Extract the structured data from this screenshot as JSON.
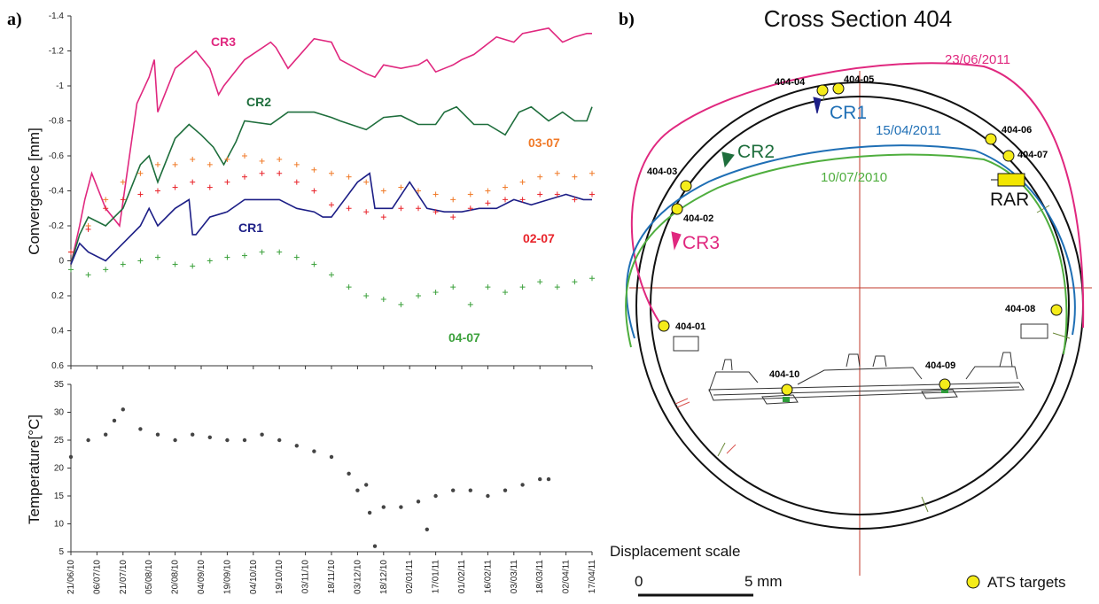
{
  "panel_a": {
    "letter": "a)",
    "convergence": {
      "ylabel": "Convergence [mm]",
      "ylim": [
        0.6,
        -1.4
      ],
      "yticks": [
        -1.4,
        -1.2,
        -1,
        -0.8,
        -0.6,
        -0.4,
        -0.2,
        0,
        0.2,
        0.4,
        0.6
      ],
      "ytick_labels": [
        "-1.4",
        "-1.2",
        "-1",
        "-0.8",
        "-0.6",
        "-0.4",
        "-0.2",
        "0",
        "0.2",
        "0.4",
        "0.6"
      ]
    },
    "temperature": {
      "ylabel": "Temperature[°C]",
      "ylim": [
        5,
        35
      ],
      "yticks": [
        5,
        10,
        15,
        20,
        25,
        30,
        35
      ],
      "ytick_labels": [
        "5",
        "10",
        "15",
        "20",
        "25",
        "30",
        "35"
      ]
    },
    "x_dates": [
      "21/06/10",
      "06/07/10",
      "21/07/10",
      "05/08/10",
      "20/08/10",
      "04/09/10",
      "19/09/10",
      "04/10/10",
      "19/10/10",
      "03/11/10",
      "18/11/10",
      "03/12/10",
      "18/12/10",
      "02/01/11",
      "17/01/11",
      "01/02/11",
      "16/02/11",
      "03/03/11",
      "18/03/11",
      "02/04/11",
      "17/04/11"
    ]
  },
  "panel_b": {
    "letter": "b)",
    "title": "Cross Section 404",
    "dates": {
      "d1": "23/06/2011",
      "d2": "15/04/2011",
      "d3": "10/07/2010"
    },
    "cr_labels": {
      "cr1": "CR1",
      "cr2": "CR2",
      "cr3": "CR3"
    },
    "rar": "RAR",
    "targets": [
      "404-01",
      "404-02",
      "404-03",
      "404-04",
      "404-05",
      "404-06",
      "404-07",
      "404-08",
      "404-09",
      "404-10"
    ],
    "scale_title": "Displacement scale",
    "scale_left": "0",
    "scale_right": "5 mm",
    "legend": "ATS targets"
  },
  "chart_data": [
    {
      "type": "line",
      "title": "",
      "xlabel": "",
      "ylabel": "Convergence [mm]",
      "x_range": [
        "21/06/10",
        "17/04/11"
      ],
      "ylim": [
        0.6,
        -1.4
      ],
      "y_axis_inverted": true,
      "grid": false,
      "series": [
        {
          "name": "CR3",
          "style": "line",
          "color": "#e0287f",
          "x": [
            0,
            5,
            8,
            12,
            20,
            28,
            38,
            45,
            48,
            50,
            60,
            72,
            80,
            85,
            88,
            92,
            100,
            115,
            118,
            125,
            140,
            150,
            155,
            170,
            175,
            180,
            190,
            200,
            205,
            210,
            220,
            225,
            232,
            245,
            255,
            260,
            275,
            283,
            290,
            297,
            300
          ],
          "y": [
            0.02,
            -0.2,
            -0.35,
            -0.5,
            -0.3,
            -0.2,
            -0.9,
            -1.05,
            -1.15,
            -0.85,
            -1.1,
            -1.2,
            -1.1,
            -0.95,
            -1.0,
            -1.05,
            -1.15,
            -1.25,
            -1.22,
            -1.1,
            -1.27,
            -1.25,
            -1.15,
            -1.07,
            -1.05,
            -1.12,
            -1.1,
            -1.12,
            -1.15,
            -1.08,
            -1.12,
            -1.15,
            -1.18,
            -1.28,
            -1.25,
            -1.3,
            -1.33,
            -1.25,
            -1.28,
            -1.3,
            -1.3
          ]
        },
        {
          "name": "CR2",
          "style": "line",
          "color": "#1e6e3c",
          "x": [
            0,
            5,
            10,
            20,
            30,
            40,
            45,
            50,
            60,
            68,
            75,
            82,
            88,
            95,
            100,
            115,
            125,
            140,
            150,
            155,
            170,
            180,
            190,
            200,
            210,
            215,
            222,
            232,
            240,
            250,
            258,
            265,
            275,
            283,
            290,
            297,
            300
          ],
          "y": [
            0.02,
            -0.15,
            -0.25,
            -0.2,
            -0.3,
            -0.55,
            -0.6,
            -0.45,
            -0.7,
            -0.78,
            -0.72,
            -0.65,
            -0.55,
            -0.68,
            -0.8,
            -0.78,
            -0.85,
            -0.85,
            -0.82,
            -0.8,
            -0.75,
            -0.82,
            -0.83,
            -0.78,
            -0.78,
            -0.85,
            -0.88,
            -0.78,
            -0.78,
            -0.72,
            -0.85,
            -0.88,
            -0.8,
            -0.85,
            -0.8,
            -0.8,
            -0.88
          ]
        },
        {
          "name": "CR1",
          "style": "line",
          "color": "#1c1e86",
          "x": [
            0,
            5,
            10,
            20,
            30,
            40,
            45,
            50,
            60,
            68,
            70,
            72,
            80,
            90,
            100,
            112,
            120,
            130,
            140,
            145,
            150,
            165,
            172,
            175,
            185,
            195,
            205,
            215,
            225,
            235,
            245,
            255,
            265,
            275,
            285,
            295,
            300
          ],
          "y": [
            0.02,
            -0.1,
            -0.05,
            0.0,
            -0.1,
            -0.2,
            -0.3,
            -0.2,
            -0.3,
            -0.35,
            -0.15,
            -0.15,
            -0.25,
            -0.28,
            -0.35,
            -0.35,
            -0.35,
            -0.3,
            -0.28,
            -0.25,
            -0.25,
            -0.45,
            -0.5,
            -0.3,
            -0.3,
            -0.45,
            -0.3,
            -0.28,
            -0.28,
            -0.3,
            -0.3,
            -0.35,
            -0.32,
            -0.35,
            -0.38,
            -0.35,
            -0.35
          ]
        },
        {
          "name": "03-07",
          "style": "scatter",
          "color": "#f07a28",
          "x": [
            0,
            10,
            20,
            30,
            40,
            50,
            60,
            70,
            80,
            90,
            100,
            110,
            120,
            130,
            140,
            150,
            160,
            170,
            180,
            190,
            200,
            210,
            220,
            230,
            240,
            250,
            260,
            270,
            280,
            290,
            300
          ],
          "y": [
            -0.05,
            -0.2,
            -0.35,
            -0.45,
            -0.5,
            -0.55,
            -0.55,
            -0.58,
            -0.55,
            -0.58,
            -0.6,
            -0.57,
            -0.58,
            -0.55,
            -0.52,
            -0.5,
            -0.48,
            -0.45,
            -0.4,
            -0.42,
            -0.4,
            -0.38,
            -0.35,
            -0.38,
            -0.4,
            -0.42,
            -0.45,
            -0.48,
            -0.5,
            -0.48,
            -0.5
          ]
        },
        {
          "name": "02-07",
          "style": "scatter",
          "color": "#e8232a",
          "x": [
            0,
            10,
            20,
            30,
            40,
            50,
            60,
            70,
            80,
            90,
            100,
            110,
            120,
            130,
            140,
            150,
            160,
            170,
            180,
            190,
            200,
            210,
            220,
            230,
            240,
            250,
            260,
            270,
            280,
            290,
            300
          ],
          "y": [
            -0.05,
            -0.18,
            -0.3,
            -0.35,
            -0.38,
            -0.4,
            -0.42,
            -0.45,
            -0.42,
            -0.45,
            -0.48,
            -0.5,
            -0.5,
            -0.45,
            -0.4,
            -0.32,
            -0.3,
            -0.28,
            -0.25,
            -0.3,
            -0.3,
            -0.28,
            -0.25,
            -0.3,
            -0.33,
            -0.35,
            -0.35,
            -0.38,
            -0.38,
            -0.35,
            -0.38
          ]
        },
        {
          "name": "04-07",
          "style": "scatter",
          "color": "#3ca13c",
          "x": [
            0,
            10,
            20,
            30,
            40,
            50,
            60,
            70,
            80,
            90,
            100,
            110,
            120,
            130,
            140,
            150,
            160,
            170,
            180,
            190,
            200,
            210,
            220,
            230,
            240,
            250,
            260,
            270,
            280,
            290,
            300
          ],
          "y": [
            0.05,
            0.08,
            0.05,
            0.02,
            0.0,
            -0.02,
            0.02,
            0.03,
            0.0,
            -0.02,
            -0.03,
            -0.05,
            -0.05,
            -0.02,
            0.02,
            0.08,
            0.15,
            0.2,
            0.22,
            0.25,
            0.2,
            0.18,
            0.15,
            0.25,
            0.15,
            0.18,
            0.15,
            0.12,
            0.15,
            0.12,
            0.1
          ]
        }
      ],
      "x_axis_tick_labels": [
        "21/06/10",
        "06/07/10",
        "21/07/10",
        "05/08/10",
        "20/08/10",
        "04/09/10",
        "19/09/10",
        "04/10/10",
        "19/10/10",
        "03/11/10",
        "18/11/10",
        "03/12/10",
        "18/12/10",
        "02/01/11",
        "17/01/11",
        "01/02/11",
        "16/02/11",
        "03/03/11",
        "18/03/11",
        "02/04/11",
        "17/04/11"
      ]
    },
    {
      "type": "scatter",
      "title": "",
      "xlabel": "",
      "ylabel": "Temperature[°C]",
      "ylim": [
        5,
        35
      ],
      "grid": false,
      "series": [
        {
          "color": "#444444",
          "x": [
            0,
            10,
            20,
            25,
            30,
            40,
            50,
            60,
            70,
            80,
            90,
            100,
            110,
            120,
            130,
            140,
            150,
            160,
            165,
            170,
            172,
            175,
            180,
            190,
            200,
            205,
            210,
            220,
            230,
            240,
            250,
            260,
            270,
            275
          ],
          "y": [
            22,
            25,
            26,
            28.5,
            30.5,
            27,
            26,
            25,
            26,
            25.5,
            25,
            25,
            26,
            25,
            24,
            23,
            22,
            19,
            16,
            17,
            12,
            6,
            13,
            13,
            14,
            9,
            15,
            16,
            16,
            15,
            16,
            17,
            18,
            18
          ]
        }
      ]
    }
  ]
}
